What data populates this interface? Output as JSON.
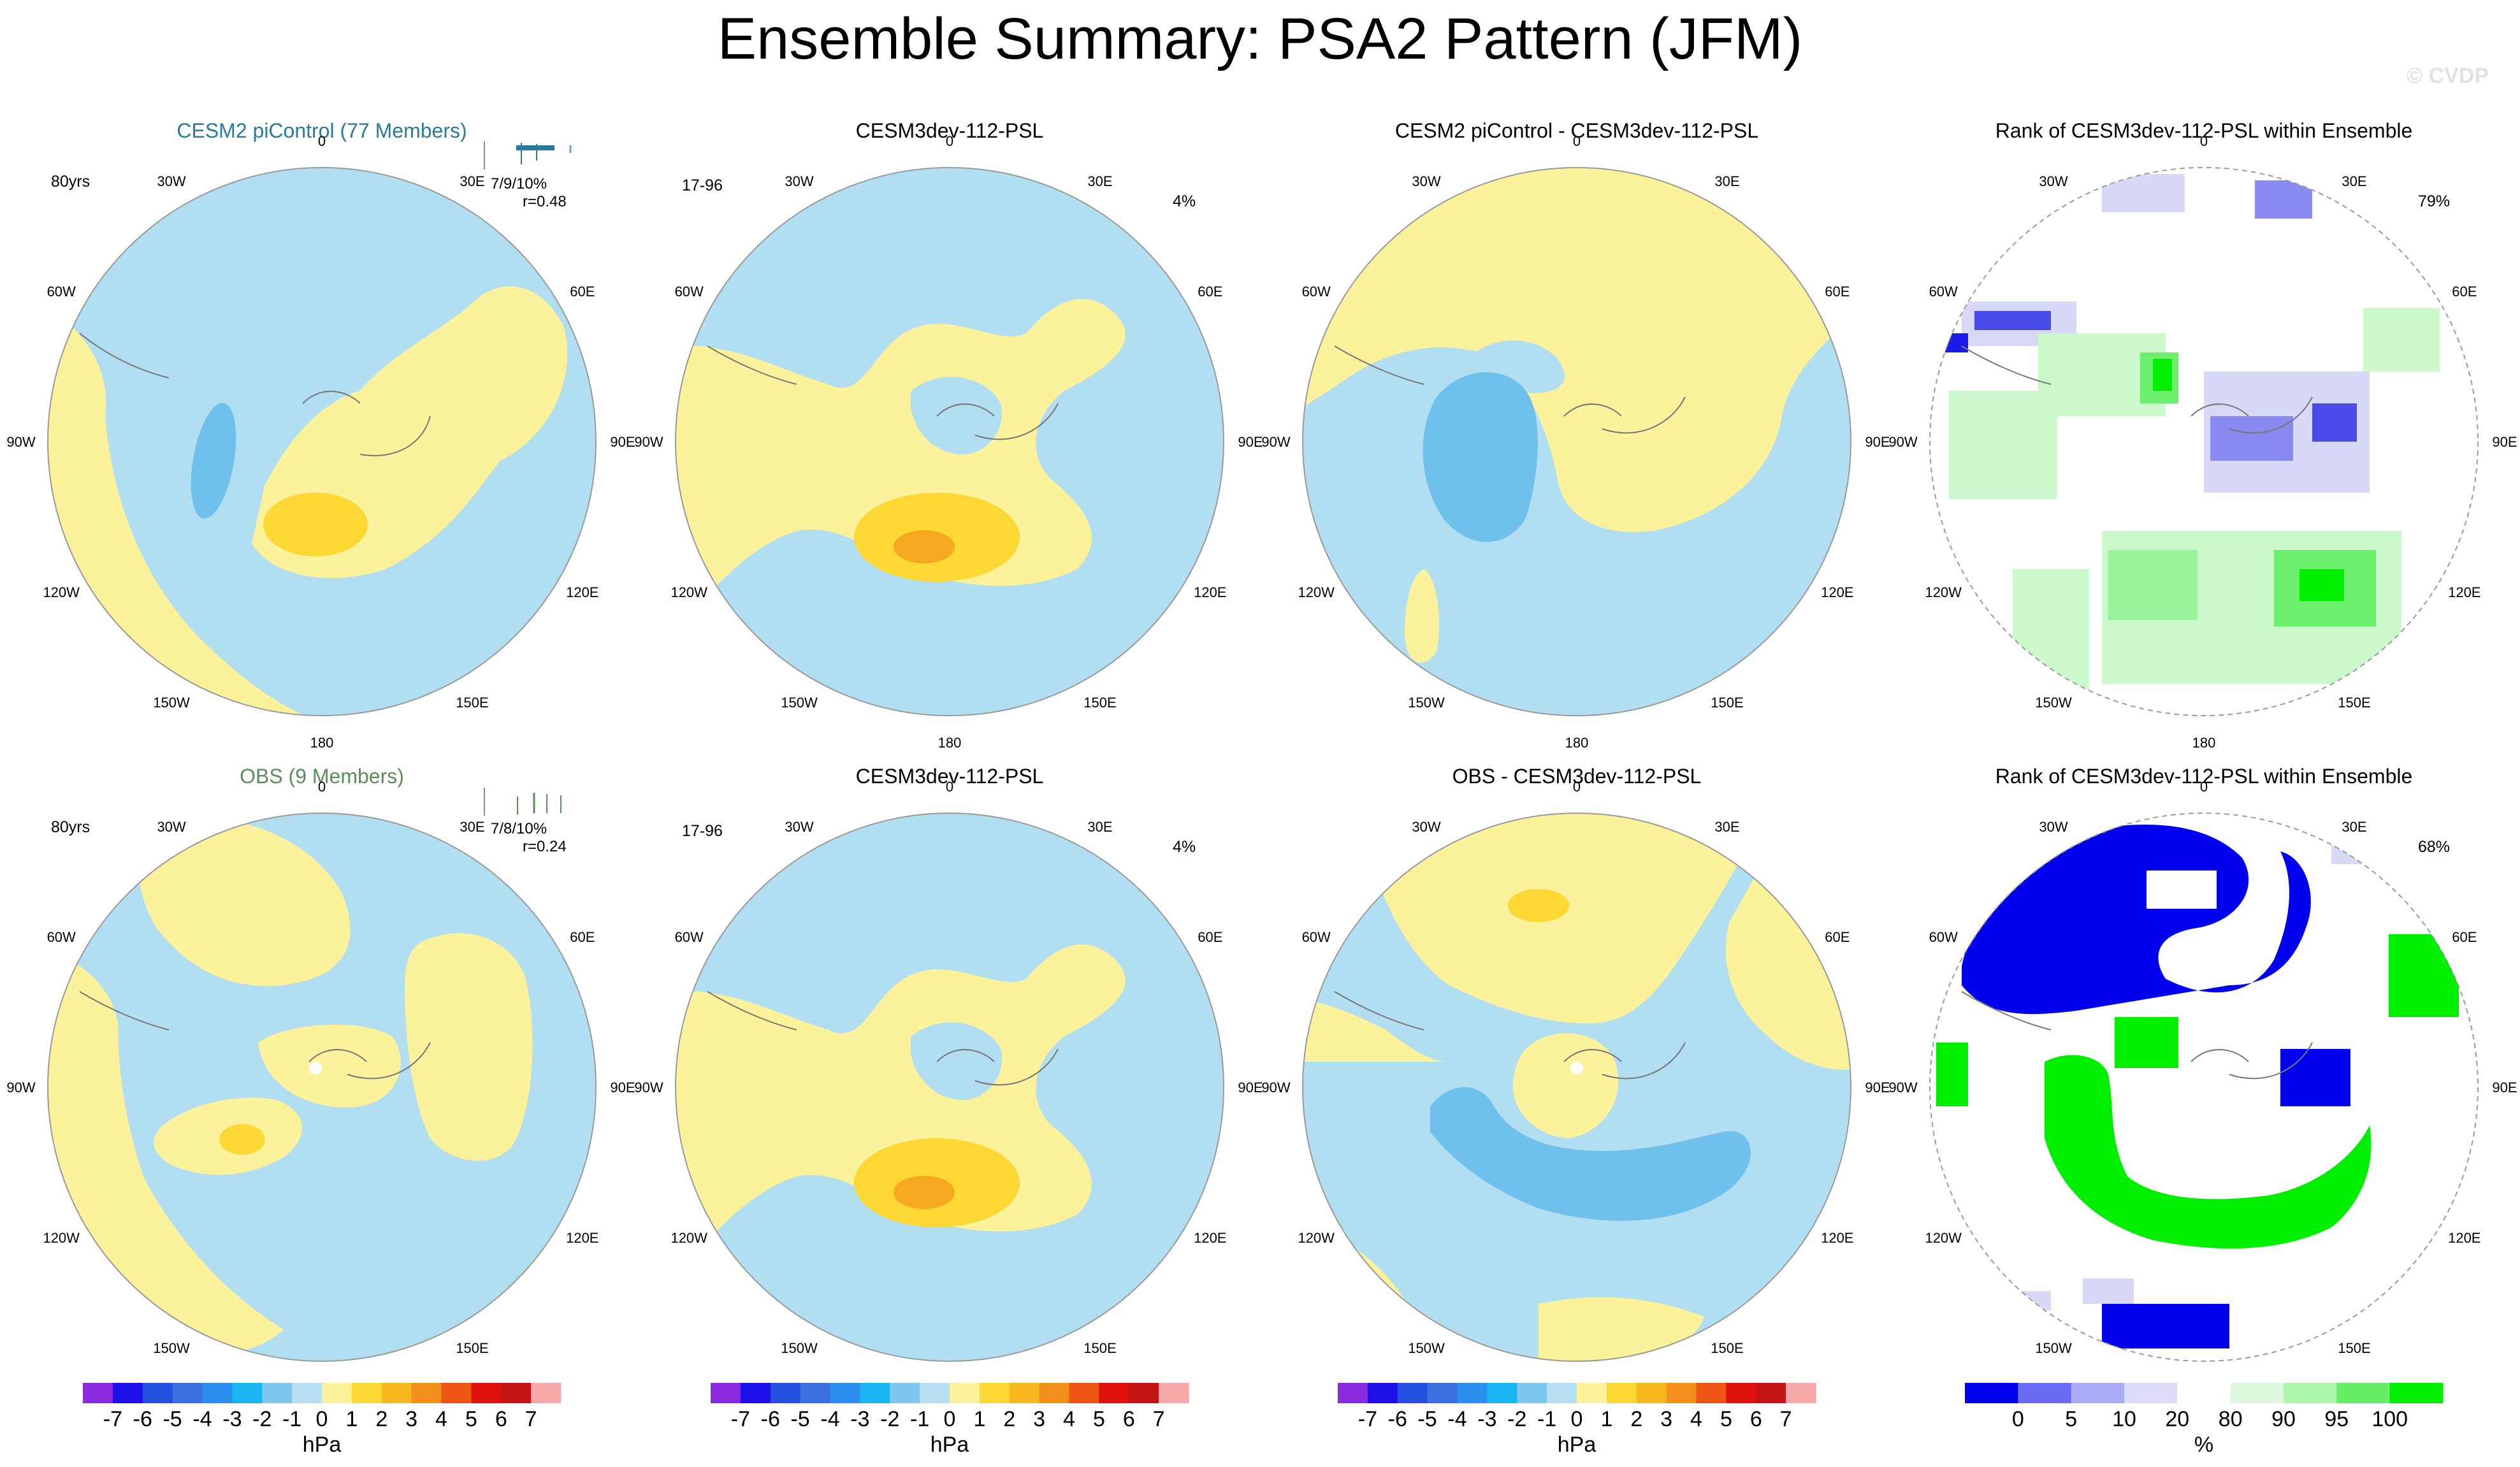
{
  "page": {
    "title": "Ensemble Summary: PSA2 Pattern (JFM)",
    "watermark": "© CVDP"
  },
  "colors": {
    "ocean_blue": "#b2def2",
    "blue_mid": "#6fc1ec",
    "yellow_light": "#fbf29b",
    "yellow_mid": "#fdd835",
    "orange": "#f6a821",
    "rank_blue": "#0000ee",
    "rank_green": "#00ee00",
    "rank_lightgreen": "#ccf9cc",
    "rank_lavender": "#d8d8f7",
    "rank_midblue": "#8a8af0",
    "ensemble_blue": "#2a7a9e",
    "ensemble_green": "#5c8c5c"
  },
  "rows": [
    {
      "panels": [
        {
          "kind": "ensemble",
          "title": "CESM2 piControl (77 Members)",
          "corner_left": "80yrs",
          "stats": "7/9/10%",
          "corr": "r=0.48"
        },
        {
          "kind": "model",
          "title": "CESM3dev-112-PSL",
          "corner_left": "17-96",
          "corner_right": "4%"
        },
        {
          "kind": "diff",
          "title": "CESM2 piControl - CESM3dev-112-PSL"
        },
        {
          "kind": "rank",
          "title": "Rank of CESM3dev-112-PSL within Ensemble",
          "corner_right": "79%"
        }
      ]
    },
    {
      "panels": [
        {
          "kind": "ensemble",
          "title": "OBS (9 Members)",
          "corner_left": "80yrs",
          "stats": "7/8/10%",
          "corr": "r=0.24"
        },
        {
          "kind": "model",
          "title": "CESM3dev-112-PSL",
          "corner_left": "17-96",
          "corner_right": "4%"
        },
        {
          "kind": "diff",
          "title": "OBS - CESM3dev-112-PSL"
        },
        {
          "kind": "rank",
          "title": "Rank of CESM3dev-112-PSL within Ensemble",
          "corner_right": "68%"
        }
      ]
    }
  ],
  "map_labels": {
    "top": "0",
    "bottom": "180",
    "left": [
      "30W",
      "60W",
      "90W",
      "120W",
      "150W"
    ],
    "right": [
      "30E",
      "60E",
      "90E",
      "120E",
      "150E"
    ]
  },
  "colorbars": [
    {
      "unit": "hPa",
      "labels": [
        "-7",
        "-6",
        "-5",
        "-4",
        "-3",
        "-2",
        "-1",
        "0",
        "1",
        "2",
        "3",
        "4",
        "5",
        "6",
        "7"
      ],
      "colors": [
        "#8a2be2",
        "#1e10e8",
        "#2550e0",
        "#3a70e0",
        "#2b8ff0",
        "#18b6f2",
        "#7cc8ee",
        "#b8def2",
        "#fbf29b",
        "#fdd835",
        "#f6b81e",
        "#f28e1a",
        "#ee5512",
        "#e0120c",
        "#c41414",
        "#f7a8a8"
      ]
    },
    {
      "unit": "hPa",
      "labels": [
        "-7",
        "-6",
        "-5",
        "-4",
        "-3",
        "-2",
        "-1",
        "0",
        "1",
        "2",
        "3",
        "4",
        "5",
        "6",
        "7"
      ],
      "colors": [
        "#8a2be2",
        "#1e10e8",
        "#2550e0",
        "#3a70e0",
        "#2b8ff0",
        "#18b6f2",
        "#7cc8ee",
        "#b8def2",
        "#fbf29b",
        "#fdd835",
        "#f6b81e",
        "#f28e1a",
        "#ee5512",
        "#e0120c",
        "#c41414",
        "#f7a8a8"
      ]
    },
    {
      "unit": "hPa",
      "labels": [
        "-7",
        "-6",
        "-5",
        "-4",
        "-3",
        "-2",
        "-1",
        "0",
        "1",
        "2",
        "3",
        "4",
        "5",
        "6",
        "7"
      ],
      "colors": [
        "#8a2be2",
        "#1e10e8",
        "#2550e0",
        "#3a70e0",
        "#2b8ff0",
        "#18b6f2",
        "#7cc8ee",
        "#b8def2",
        "#fbf29b",
        "#fdd835",
        "#f6b81e",
        "#f28e1a",
        "#ee5512",
        "#e0120c",
        "#c41414",
        "#f7a8a8"
      ]
    },
    {
      "unit": "%",
      "labels": [
        "0",
        "5",
        "10",
        "20",
        "80",
        "90",
        "95",
        "100"
      ],
      "colors": [
        "#0000ee",
        "#6a6af2",
        "#aaaaf6",
        "#dcdcf8",
        "#ffffff",
        "#dcf8dc",
        "#aaf6aa",
        "#66ee66",
        "#00ee00"
      ]
    }
  ]
}
